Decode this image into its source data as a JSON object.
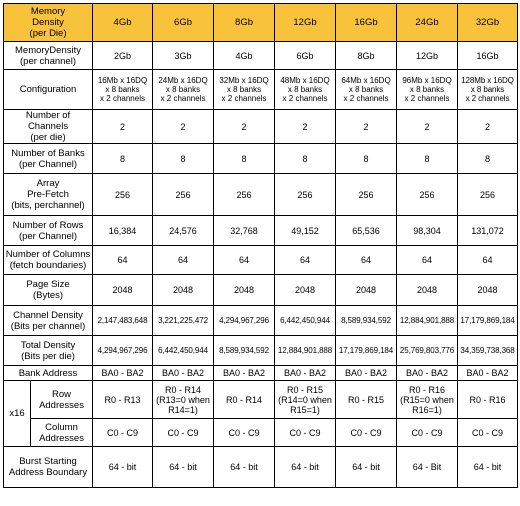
{
  "header": {
    "corner_label": "Memory\nDensity\n(per Die)",
    "densities": [
      "4Gb",
      "6Gb",
      "8Gb",
      "12Gb",
      "16Gb",
      "24Gb",
      "32Gb"
    ]
  },
  "rows": {
    "memory_density_per_channel": {
      "label": "MemoryDensity\n(per channel)",
      "values": [
        "2Gb",
        "3Gb",
        "4Gb",
        "6Gb",
        "8Gb",
        "12Gb",
        "16Gb"
      ]
    },
    "configuration": {
      "label": "Configuration",
      "values": [
        "16Mb x 16DQ\nx 8 banks\nx 2 channels",
        "24Mb x 16DQ\nx 8 banks\nx 2 channels",
        "32Mb x 16DQ\nx 8 banks\nx 2 channels",
        "48Mb x 16DQ\nx 8 banks\nx 2 channels",
        "64Mb x 16DQ\nx 8 banks\nx 2 channels",
        "96Mb x 16DQ\nx 8 banks\nx 2 channels",
        "128Mb x 16DQ\nx 8 banks\nx 2 channels"
      ]
    },
    "number_of_channels": {
      "label": "Number of Channels\n(per die)",
      "values": [
        "2",
        "2",
        "2",
        "2",
        "2",
        "2",
        "2"
      ]
    },
    "number_of_banks": {
      "label": "Number of Banks\n(per Channel)",
      "values": [
        "8",
        "8",
        "8",
        "8",
        "8",
        "8",
        "8"
      ]
    },
    "array_prefetch": {
      "label": "Array\nPre-Fetch\n(bits, perchannel)",
      "values": [
        "256",
        "256",
        "256",
        "256",
        "256",
        "256",
        "256"
      ]
    },
    "number_of_rows": {
      "label": "Number of Rows\n(per Channel)",
      "values": [
        "16,384",
        "24,576",
        "32,768",
        "49,152",
        "65,536",
        "98,304",
        "131,072"
      ]
    },
    "number_of_columns": {
      "label": "Number of Columns\n(fetch boundaries)",
      "values": [
        "64",
        "64",
        "64",
        "64",
        "64",
        "64",
        "64"
      ]
    },
    "page_size": {
      "label": "Page Size\n(Bytes)",
      "values": [
        "2048",
        "2048",
        "2048",
        "2048",
        "2048",
        "2048",
        "2048"
      ]
    },
    "channel_density": {
      "label": "Channel Density\n(Bits per channel)",
      "values": [
        "2,147,483,648",
        "3,221,225,472",
        "4,294,967,296",
        "6,442,450,944",
        "8,589,934,592",
        "12,884,901,888",
        "17,179,869,184"
      ]
    },
    "total_density": {
      "label": "Total Density\n(Bits per die)",
      "values": [
        "4,294,967,296",
        "6,442,450,944",
        "8,589,934,592",
        "12,884,901,888",
        "17,179,869,184",
        "25,769,803,776",
        "34,359,738,368"
      ]
    },
    "bank_address": {
      "label": "Bank Address",
      "values": [
        "BA0 - BA2",
        "BA0 - BA2",
        "BA0 - BA2",
        "BA0 - BA2",
        "BA0 - BA2",
        "BA0 - BA2",
        "BA0 - BA2"
      ]
    },
    "x16_group_label": "x16",
    "row_addresses": {
      "label": "Row\nAddresses",
      "values": [
        "R0 - R13",
        "R0 - R14\n(R13=0 when\nR14=1)",
        "R0 - R14",
        "R0 - R15\n(R14=0 when\nR15=1)",
        "R0 - R15",
        "R0 - R16\n(R15=0 when\nR16=1)",
        "R0 - R16"
      ]
    },
    "column_addresses": {
      "label": "Column\nAddresses",
      "values": [
        "C0 - C9",
        "C0 - C9",
        "C0 - C9",
        "C0 - C9",
        "C0 - C9",
        "C0 - C9",
        "C0 - C9"
      ]
    },
    "burst_starting_address": {
      "label": "Burst Starting\nAddress Boundary",
      "values": [
        "64 - bit",
        "64 - bit",
        "64 - bit",
        "64 - bit",
        "64 - bit",
        "64 - Bit",
        "64 - bit"
      ]
    }
  },
  "colors": {
    "header_fill": "#f8c23a",
    "grid_line": "#000000"
  }
}
